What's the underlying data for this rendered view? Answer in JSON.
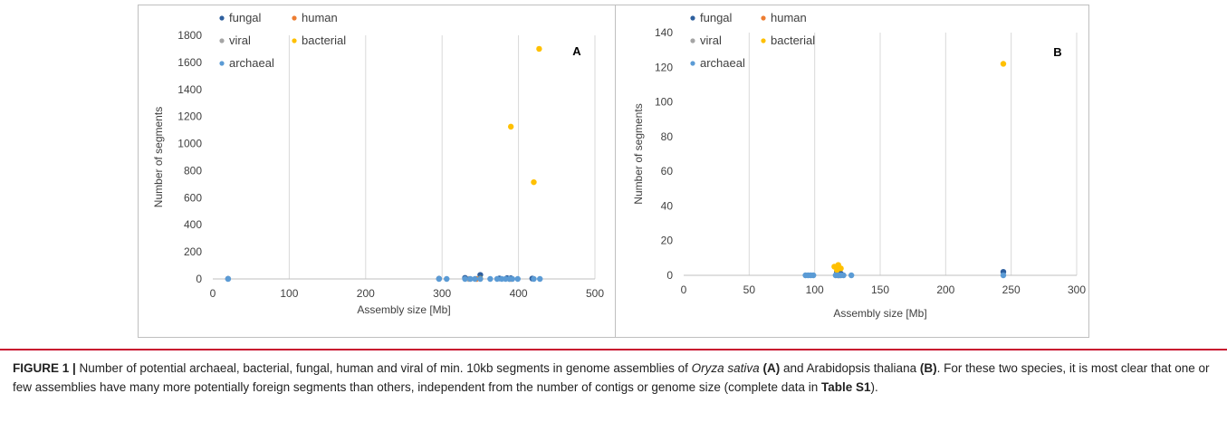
{
  "chart_data": [
    {
      "type": "scatter",
      "panel": "A",
      "xlabel": "Assembly size [Mb]",
      "ylabel": "Number of segments",
      "xlim": [
        0,
        500
      ],
      "ylim": [
        0,
        1800
      ],
      "xticks": [
        "0",
        "100",
        "200",
        "300",
        "400",
        "500"
      ],
      "yticks": [
        "0",
        "200",
        "400",
        "600",
        "800",
        "1000",
        "1200",
        "1400",
        "1600",
        "1800"
      ],
      "grid": "vertical",
      "legend": {
        "position": "top-left",
        "entries": [
          "fungal",
          "human",
          "viral",
          "bacterial",
          "archaeal"
        ]
      },
      "series": [
        {
          "name": "fungal",
          "color": "#2e5f9e",
          "points": [
            [
              20,
              1
            ],
            [
              296,
              2
            ],
            [
              330,
              8
            ],
            [
              350,
              30
            ],
            [
              375,
              4
            ],
            [
              385,
              6
            ],
            [
              390,
              5
            ],
            [
              418,
              3
            ]
          ]
        },
        {
          "name": "human",
          "color": "#ed7d31",
          "points": [
            [
              345,
              0
            ],
            [
              390,
              0
            ]
          ]
        },
        {
          "name": "viral",
          "color": "#a5a5a5",
          "points": [
            [
              335,
              0
            ],
            [
              388,
              0
            ]
          ]
        },
        {
          "name": "bacterial",
          "color": "#ffc000",
          "points": [
            [
              427,
              1700
            ],
            [
              390,
              1125
            ],
            [
              420,
              715
            ],
            [
              350,
              2
            ]
          ]
        },
        {
          "name": "archaeal",
          "color": "#5b9bd5",
          "points": [
            [
              20,
              0
            ],
            [
              296,
              0
            ],
            [
              306,
              0
            ],
            [
              330,
              0
            ],
            [
              337,
              0
            ],
            [
              343,
              0
            ],
            [
              350,
              0
            ],
            [
              363,
              0
            ],
            [
              372,
              0
            ],
            [
              378,
              0
            ],
            [
              383,
              0
            ],
            [
              388,
              0
            ],
            [
              392,
              0
            ],
            [
              399,
              0
            ],
            [
              420,
              0
            ],
            [
              428,
              0
            ]
          ]
        }
      ]
    },
    {
      "type": "scatter",
      "panel": "B",
      "xlabel": "Assembly size [Mb]",
      "ylabel": "Number of segments",
      "xlim": [
        0,
        300
      ],
      "ylim": [
        0,
        140
      ],
      "xticks": [
        "0",
        "50",
        "100",
        "150",
        "200",
        "250",
        "300"
      ],
      "yticks": [
        "0",
        "20",
        "40",
        "60",
        "80",
        "100",
        "120",
        "140"
      ],
      "grid": "vertical",
      "legend": {
        "position": "top-left",
        "entries": [
          "fungal",
          "human",
          "viral",
          "bacterial",
          "archaeal"
        ]
      },
      "series": [
        {
          "name": "fungal",
          "color": "#2e5f9e",
          "points": [
            [
              117,
              2
            ],
            [
              244,
              2
            ],
            [
              120,
              1
            ]
          ]
        },
        {
          "name": "human",
          "color": "#ed7d31",
          "points": [
            [
              118,
              0
            ]
          ]
        },
        {
          "name": "viral",
          "color": "#a5a5a5",
          "points": [
            [
              119,
              0
            ]
          ]
        },
        {
          "name": "bacterial",
          "color": "#ffc000",
          "points": [
            [
              244,
              122
            ],
            [
              118,
              6
            ],
            [
              115,
              5
            ],
            [
              120,
              4
            ],
            [
              117,
              3
            ]
          ]
        },
        {
          "name": "archaeal",
          "color": "#5b9bd5",
          "points": [
            [
              93,
              0
            ],
            [
              95,
              0
            ],
            [
              97,
              0
            ],
            [
              99,
              0
            ],
            [
              116,
              0
            ],
            [
              118,
              0
            ],
            [
              120,
              0
            ],
            [
              122,
              0
            ],
            [
              128,
              0
            ],
            [
              244,
              0
            ]
          ]
        }
      ]
    }
  ],
  "caption": {
    "label": "FIGURE 1 |",
    "t1": " Number of potential archaeal, bacterial, fungal, human and viral of min. 10kb segments in genome assemblies of ",
    "species1": "Oryza sativa",
    "ref_a": "(A)",
    "t2": " and Arabidopsis thaliana ",
    "ref_b": "(B)",
    "t3": ". For these two species, it is most clear that one or few assemblies have many more potentially foreign segments than others, independent from the number of contigs or genome size (complete data in ",
    "table_ref": "Table S1",
    "t4": ")."
  }
}
